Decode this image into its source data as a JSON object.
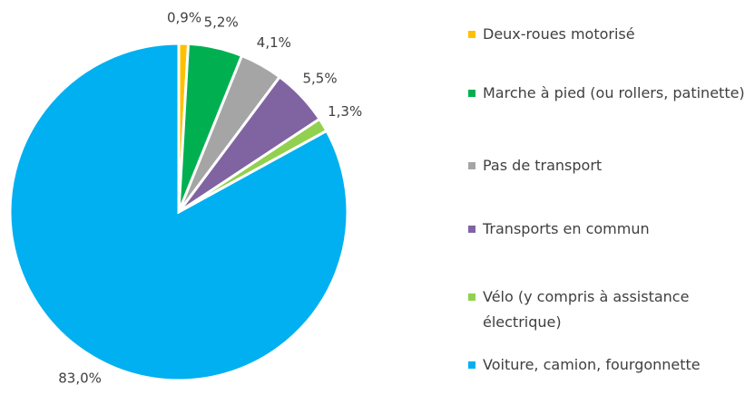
{
  "chart_data": {
    "type": "pie",
    "categories": [
      "Deux-roues motorisé",
      "Marche à pied (ou rollers, patinette)",
      "Pas de transport",
      "Transports en commun",
      "Vélo (y compris à assistance électrique)",
      "Voiture, camion, fourgonnette"
    ],
    "values": [
      0.9,
      5.2,
      4.1,
      5.5,
      1.3,
      83.0
    ],
    "value_labels": [
      "0,9%",
      "5,2%",
      "4,1%",
      "5,5%",
      "1,3%",
      "83,0%"
    ],
    "colors": [
      "#ffc000",
      "#00b050",
      "#a5a5a5",
      "#8064a2",
      "#92d050",
      "#00b0f0"
    ],
    "legend": "right"
  }
}
